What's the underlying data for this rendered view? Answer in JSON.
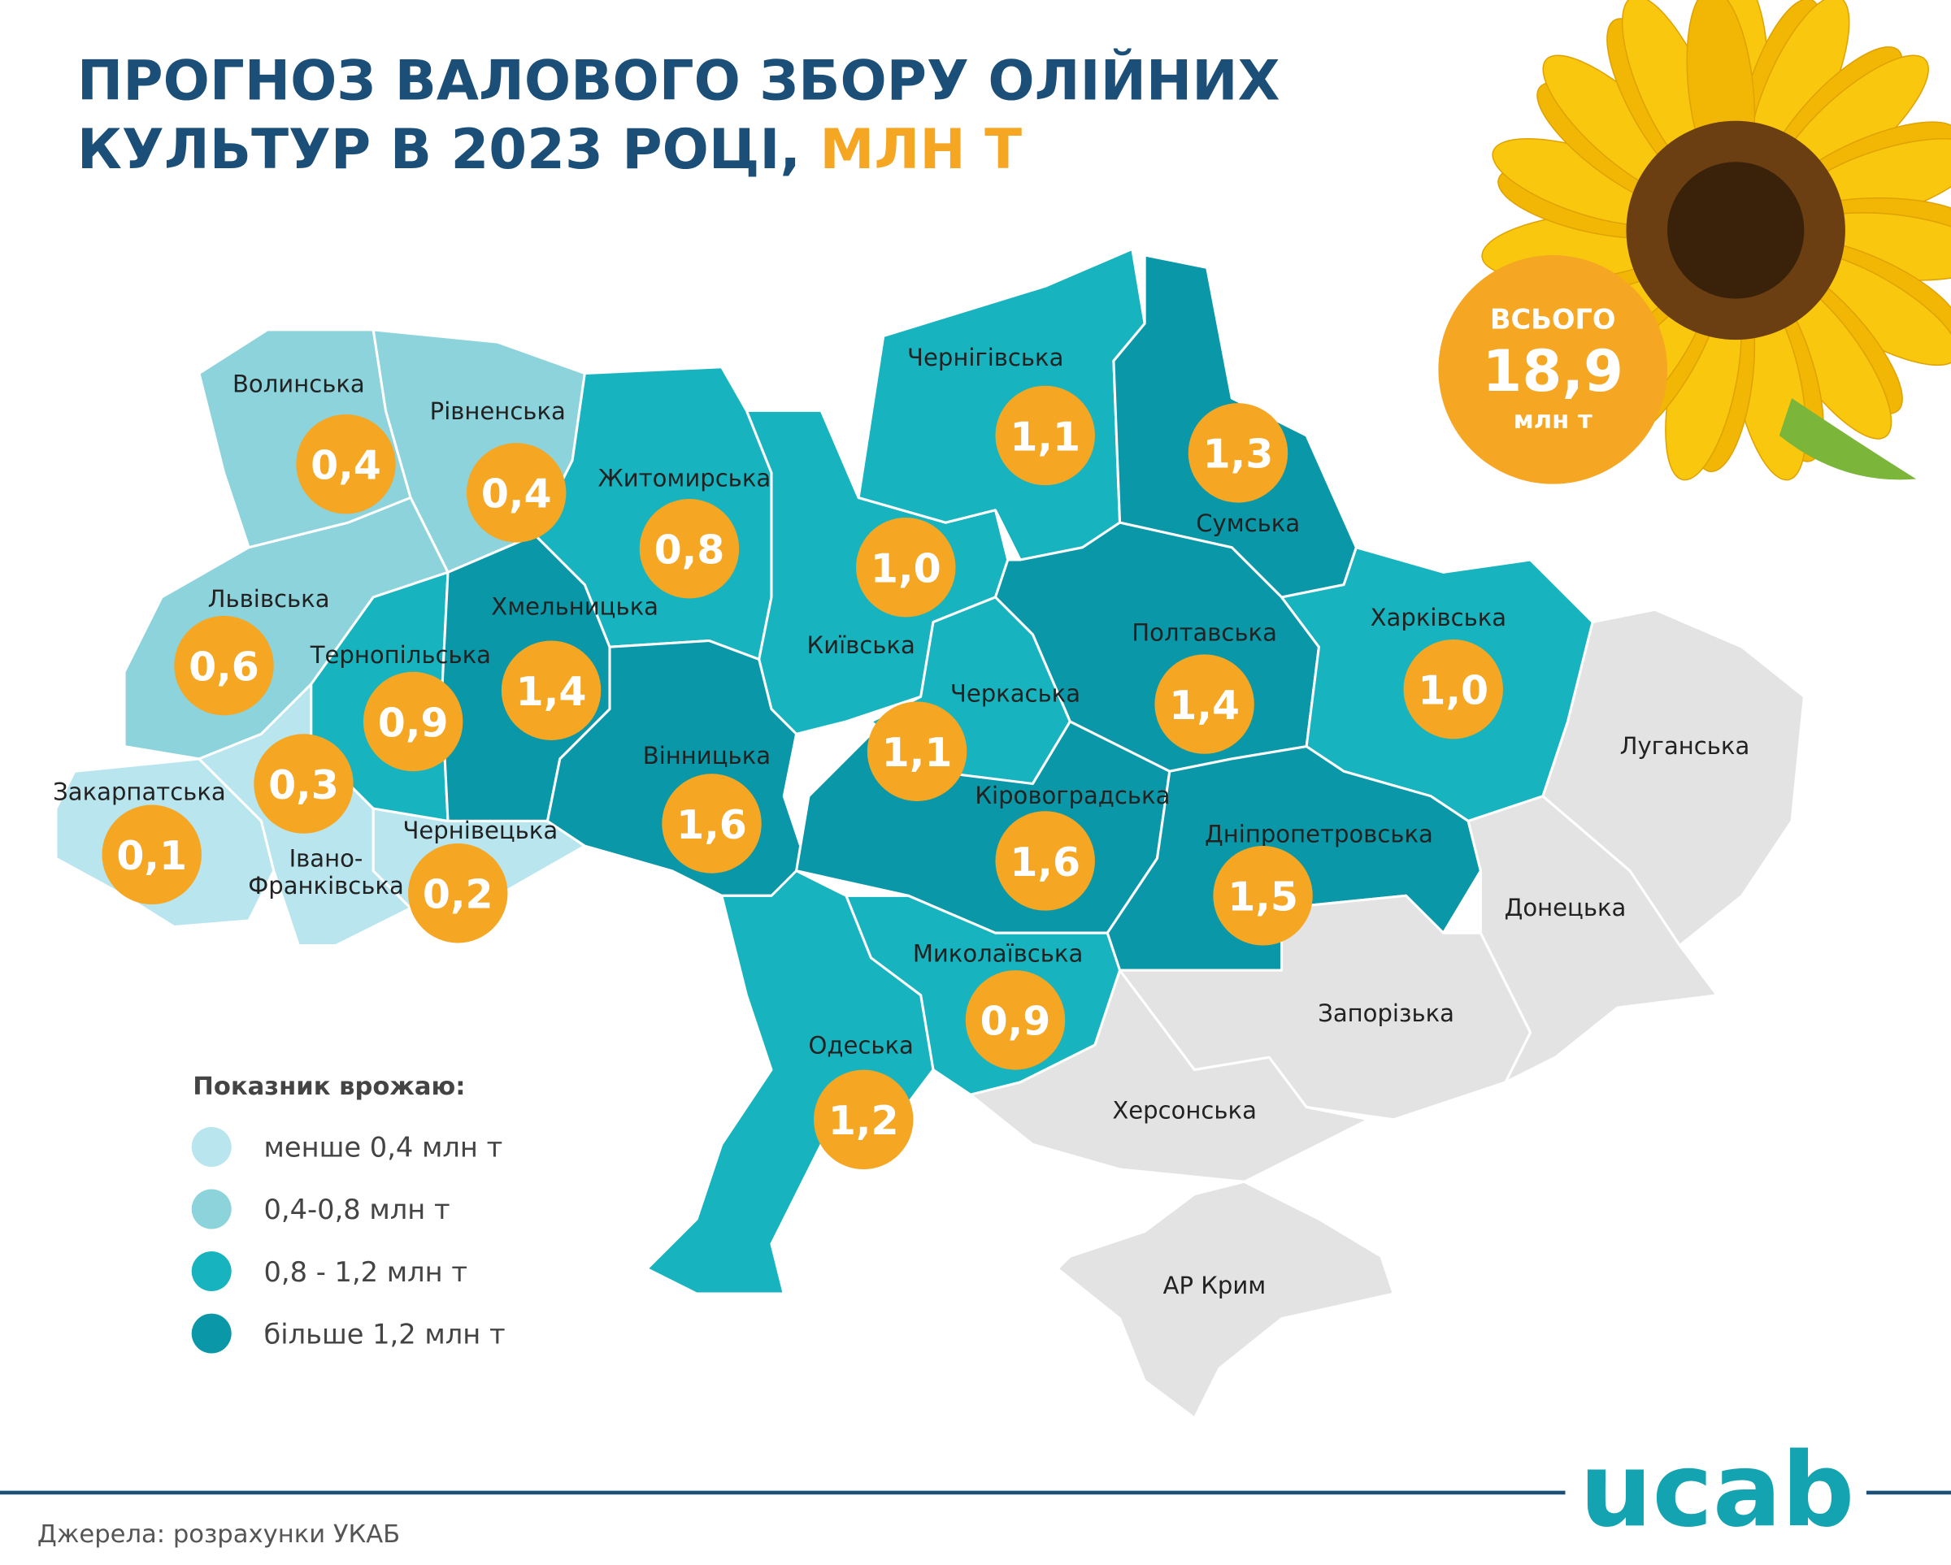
{
  "header": {
    "title_lines": [
      "ПРОГНОЗ ВАЛОВОГО ЗБОРУ ОЛІЙНИХ",
      "КУЛЬТУР В 2023 РОЦІ,"
    ],
    "title_highlight": "МЛН Т"
  },
  "total": {
    "label": "ВСЬОГО",
    "value": "18,9",
    "unit": "млн т"
  },
  "regions": [
    {
      "name": "Волинська",
      "value": "0,4",
      "color": "#8dd3dc"
    },
    {
      "name": "Рівненська",
      "value": "0,4",
      "color": "#8dd3dc"
    },
    {
      "name": "Львівська",
      "value": "0,6",
      "color": "#8dd3dc"
    },
    {
      "name": "Тернопільська",
      "value": "0,9",
      "color": "#17b4bf"
    },
    {
      "name": "Хмельницька",
      "value": "1,4",
      "color": "#0a97a8"
    },
    {
      "name": "Закарпатська",
      "value": "0,1",
      "color": "#b9e6ee"
    },
    {
      "name": "Івано-\nФранківська",
      "value": "0,3",
      "color": "#b9e6ee"
    },
    {
      "name": "Чернівецька",
      "value": "0,2",
      "color": "#b9e6ee"
    },
    {
      "name": "Житомирська",
      "value": "0,8",
      "color": "#17b4bf"
    },
    {
      "name": "Київська",
      "value": "1,0",
      "color": "#17b4bf"
    },
    {
      "name": "Чернігівська",
      "value": "1,1",
      "color": "#17b4bf"
    },
    {
      "name": "Сумська",
      "value": "1,3",
      "color": "#0a97a8"
    },
    {
      "name": "Полтавська",
      "value": "1,4",
      "color": "#0a97a8"
    },
    {
      "name": "Харківська",
      "value": "1,0",
      "color": "#17b4bf"
    },
    {
      "name": "Черкаська",
      "value": "1,1",
      "color": "#17b4bf"
    },
    {
      "name": "Вінницька",
      "value": "1,6",
      "color": "#0a97a8"
    },
    {
      "name": "Кіровоградська",
      "value": "1,6",
      "color": "#0a97a8"
    },
    {
      "name": "Дніпропетровська",
      "value": "1,5",
      "color": "#0a97a8"
    },
    {
      "name": "Миколаївська",
      "value": "0,9",
      "color": "#17b4bf"
    },
    {
      "name": "Одеська",
      "value": "1,2",
      "color": "#17b4bf"
    },
    {
      "name": "Запорізька",
      "color": "#e3e3e3"
    },
    {
      "name": "Херсонська",
      "color": "#e3e3e3"
    },
    {
      "name": "Донецька",
      "color": "#e3e3e3"
    },
    {
      "name": "Луганська",
      "color": "#e3e3e3"
    },
    {
      "name": "АР Крим",
      "color": "#e3e3e3"
    }
  ],
  "legend": {
    "title": "Показник врожаю:",
    "items": [
      {
        "label": "менше 0,4 млн т",
        "color": "#b9e6ee"
      },
      {
        "label": "0,4-0,8 млн т",
        "color": "#8dd3dc"
      },
      {
        "label": "0,8 - 1,2 млн т",
        "color": "#17b4bf"
      },
      {
        "label": "більше 1,2 млн т",
        "color": "#0a97a8"
      }
    ]
  },
  "footer": {
    "source": "Джерела: розрахунки УКАБ",
    "logo": "ucab"
  }
}
